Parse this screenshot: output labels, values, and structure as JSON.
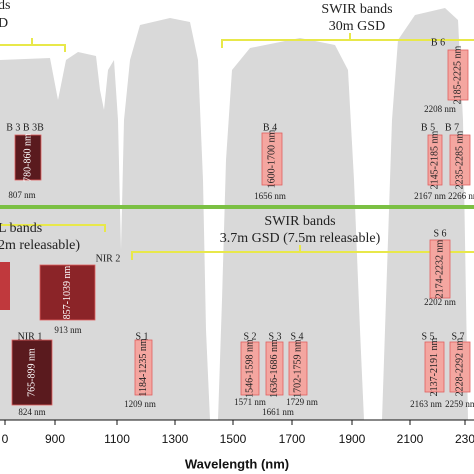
{
  "upper": {
    "left_heading": [
      "ds",
      "D"
    ],
    "swir_heading": [
      "SWIR bands",
      "30m GSD"
    ],
    "bands": [
      {
        "label": "B 3 B 3B",
        "range": "780-860 nm",
        "center": "807 nm"
      },
      {
        "label": "B 4",
        "range": "1600-1700 nm",
        "center": "1656 nm"
      },
      {
        "label": "B 6",
        "range": "2185-2225 nm",
        "center": "2208 nm"
      },
      {
        "label": "B 5",
        "range": "2145-2185 nm",
        "center": "2167 nm"
      },
      {
        "label": "B 7",
        "range": "2235-2285 nm",
        "center": "2266 nm"
      }
    ]
  },
  "lower": {
    "left_heading": [
      "L bands",
      "2m releasable)"
    ],
    "swir_heading": [
      "SWIR bands",
      "3.7m GSD (7.5m releasable)"
    ],
    "bands": [
      {
        "label": "NIR 2",
        "range": "857-1039 nm",
        "center": "913 nm"
      },
      {
        "label": "NIR 1",
        "range": "765-899 nm",
        "center": "824 nm"
      },
      {
        "label": "S 1",
        "range": "1184-1235 nm",
        "center": "1209 nm"
      },
      {
        "label": "S 2",
        "range": "1546-1598 nm",
        "center": "1571 nm"
      },
      {
        "label": "S 3",
        "range": "1636-1686 nm",
        "center": "1661 nm"
      },
      {
        "label": "S 4",
        "range": "1702-1759 nm",
        "center": "1729 nm"
      },
      {
        "label": "S 6",
        "range": "2174-2232 nm",
        "center": "2202 nm"
      },
      {
        "label": "S 5",
        "range": "2137-2191 nm",
        "center": "2163 nm"
      },
      {
        "label": "S 7",
        "range": "2228-2292 nm",
        "center": "2259 nm"
      }
    ]
  },
  "axis": {
    "ticks": [
      "0",
      "900",
      "1100",
      "1300",
      "1500",
      "1700",
      "1900",
      "2100",
      "230"
    ],
    "title": "Wavelength (nm)"
  }
}
